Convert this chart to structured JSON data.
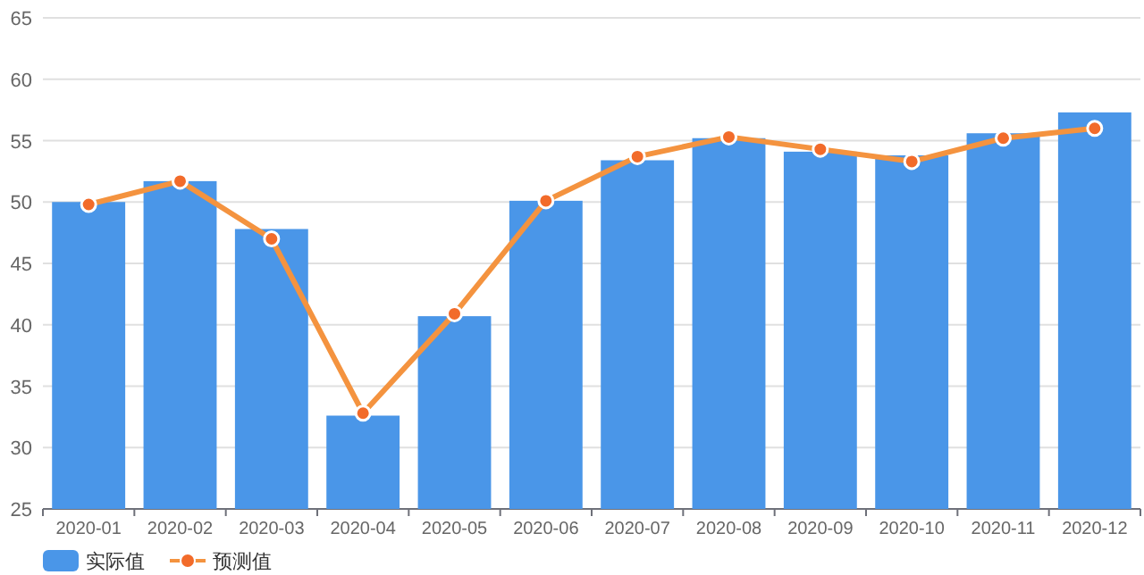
{
  "chart_data": {
    "type": "bar",
    "categories": [
      "2020-01",
      "2020-02",
      "2020-03",
      "2020-04",
      "2020-05",
      "2020-06",
      "2020-07",
      "2020-08",
      "2020-09",
      "2020-10",
      "2020-11",
      "2020-12"
    ],
    "series": [
      {
        "name": "实际值",
        "color": "#4a96e8",
        "values": [
          50.0,
          51.7,
          47.8,
          32.6,
          40.7,
          50.1,
          53.4,
          55.2,
          54.1,
          53.8,
          55.6,
          57.3
        ]
      },
      {
        "name": "预测值",
        "type": "line",
        "color": "#f4933f",
        "marker": "circle",
        "values": [
          49.8,
          51.7,
          47.0,
          32.8,
          40.9,
          50.1,
          53.7,
          55.3,
          54.3,
          53.3,
          55.2,
          56.0
        ]
      }
    ],
    "ylim": [
      25,
      65
    ],
    "yticks": [
      25,
      30,
      35,
      40,
      45,
      50,
      55,
      60,
      65
    ],
    "grid": "y",
    "legend": "bottom left"
  }
}
